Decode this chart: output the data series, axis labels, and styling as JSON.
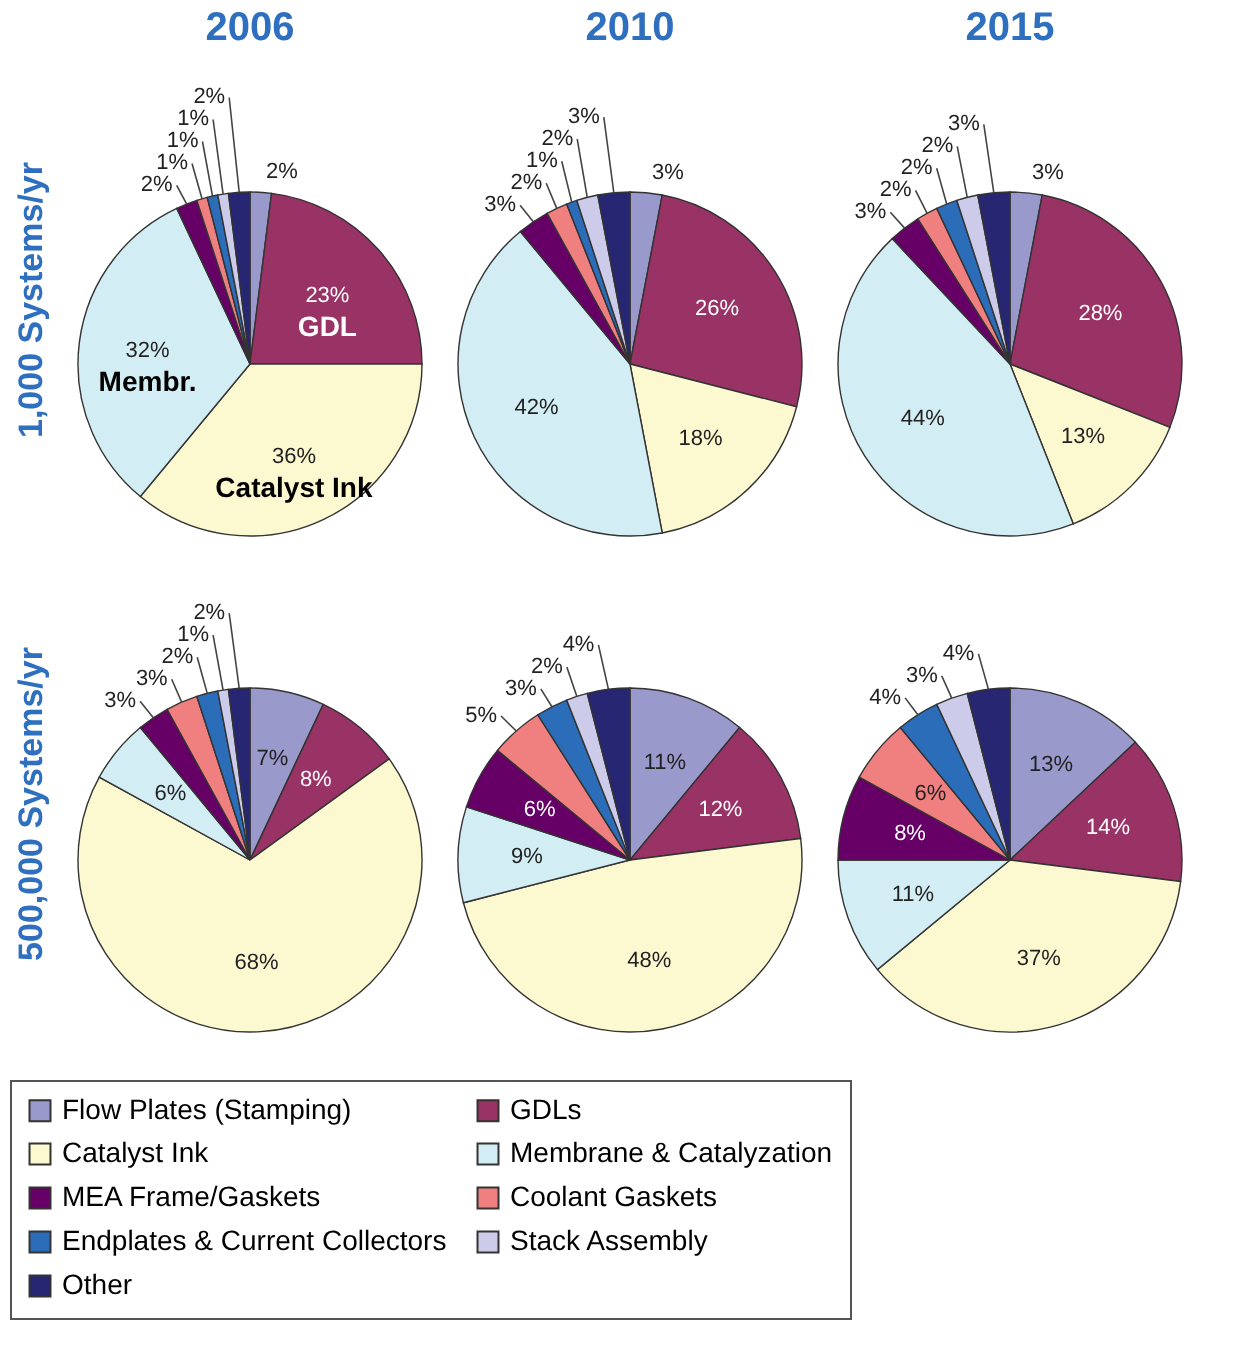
{
  "chart_data": [
    {
      "type": "pie",
      "legend": "bottom",
      "title": "2006",
      "ylabel": "1,000 Systems/yr",
      "categories": [
        "Flow Plates (Stamping)",
        "GDLs",
        "Catalyst Ink",
        "Membrane & Catalyzation",
        "MEA Frame/Gaskets",
        "Coolant Gaskets",
        "Endplates & Current Collectors",
        "Stack Assembly",
        "Other"
      ],
      "values": [
        2,
        23,
        36,
        32,
        2,
        1,
        1,
        1,
        2
      ],
      "value_labels": [
        "2%",
        "23%",
        "36%",
        "32%",
        "2%",
        "1%",
        "1%",
        "1%",
        "2%"
      ],
      "colors": [
        "#9999cc",
        "#993366",
        "#fcf8cf",
        "#d3edf4",
        "#660066",
        "#f08080",
        "#2b6db8",
        "#ccccea",
        "#262673"
      ],
      "annotations": [
        {
          "text": "GDL",
          "x": "GDLs"
        },
        {
          "text": "Catalyst Ink",
          "x": "Catalyst Ink"
        },
        {
          "text": "Membr.",
          "x": "Membrane & Catalyzation"
        }
      ]
    },
    {
      "type": "pie",
      "title": "2010",
      "categories": [
        null,
        null,
        null,
        null,
        null,
        null,
        null,
        null,
        null
      ],
      "values": [
        3,
        26,
        18,
        42,
        3,
        2,
        1,
        2,
        3
      ],
      "value_labels": [
        "3%",
        "26%",
        "18%",
        "42%",
        "3%",
        "2%",
        "1%",
        "2%",
        "3%"
      ],
      "colors": [
        "#9999cc",
        "#993366",
        "#fcf8cf",
        "#d3edf4",
        "#660066",
        "#f08080",
        "#2b6db8",
        "#ccccea",
        "#262673"
      ]
    },
    {
      "type": "pie",
      "title": "2015",
      "categories": [
        null,
        null,
        null,
        null,
        null,
        null,
        null,
        null,
        null
      ],
      "values": [
        3,
        28,
        13,
        44,
        3,
        2,
        2,
        2,
        3
      ],
      "value_labels": [
        "3%",
        "28%",
        "13%",
        "44%",
        "3%",
        "2%",
        "2%",
        "2%",
        "3%"
      ],
      "colors": [
        "#9999cc",
        "#993366",
        "#fcf8cf",
        "#d3edf4",
        "#660066",
        "#f08080",
        "#2b6db8",
        "#ccccea",
        "#262673"
      ]
    },
    {
      "type": "pie",
      "ylabel": "500,000 Systems/yr",
      "categories": [
        null,
        null,
        null,
        null,
        null,
        null,
        null,
        null,
        null
      ],
      "values": [
        7,
        8,
        68,
        6,
        3,
        3,
        2,
        1,
        2
      ],
      "value_labels": [
        "7%",
        "8%",
        "68%",
        "6%",
        "3%",
        "3%",
        "2%",
        "1%",
        "2%"
      ],
      "colors": [
        "#9999cc",
        "#993366",
        "#fcf8cf",
        "#d3edf4",
        "#660066",
        "#f08080",
        "#2b6db8",
        "#ccccea",
        "#262673"
      ]
    },
    {
      "type": "pie",
      "categories": [
        null,
        null,
        null,
        null,
        null,
        null,
        null,
        null,
        null
      ],
      "values": [
        11,
        12,
        48,
        9,
        6,
        5,
        3,
        2,
        4
      ],
      "value_labels": [
        "11%",
        "12%",
        "48%",
        "9%",
        "6%",
        "5%",
        "3%",
        "2%",
        "4%"
      ],
      "colors": [
        "#9999cc",
        "#993366",
        "#fcf8cf",
        "#d3edf4",
        "#660066",
        "#f08080",
        "#2b6db8",
        "#ccccea",
        "#262673"
      ]
    },
    {
      "type": "pie",
      "categories": [
        null,
        null,
        null,
        null,
        null,
        null,
        null,
        null,
        null
      ],
      "values": [
        13,
        14,
        37,
        11,
        8,
        6,
        4,
        3,
        4
      ],
      "value_labels": [
        "13%",
        "14%",
        "37%",
        "11%",
        "8%",
        "6%",
        "4%",
        "3%",
        "4%"
      ],
      "colors": [
        "#9999cc",
        "#993366",
        "#fcf8cf",
        "#d3edf4",
        "#660066",
        "#f08080",
        "#2b6db8",
        "#ccccea",
        "#262673"
      ]
    }
  ]
}
